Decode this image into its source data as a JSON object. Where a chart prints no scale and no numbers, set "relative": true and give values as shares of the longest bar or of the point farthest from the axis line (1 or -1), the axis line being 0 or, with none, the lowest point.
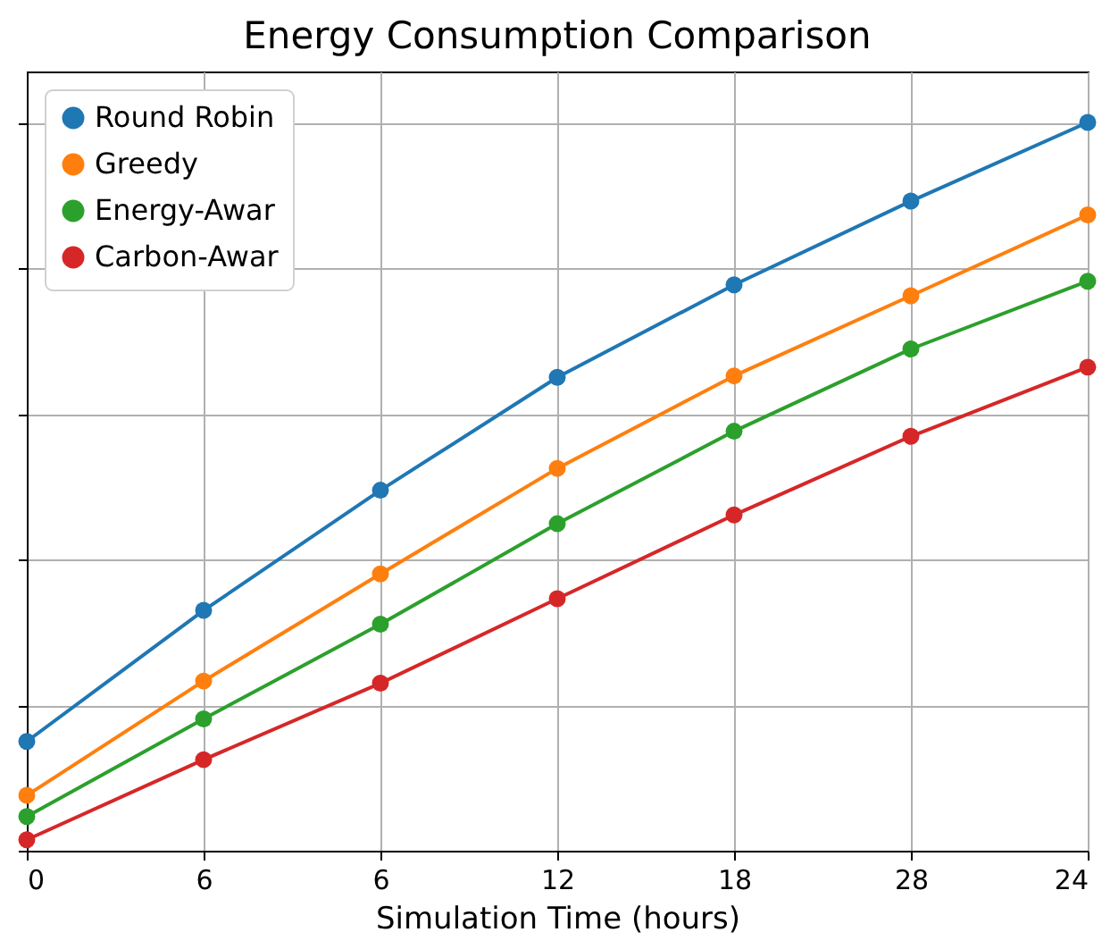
{
  "chart_data": {
    "type": "line",
    "title": "Energy Consumption Comparison",
    "xlabel": "Simulation Time (hours)",
    "categories": [
      "0",
      "6",
      "6",
      "12",
      "18",
      "28",
      "24"
    ],
    "relative": true,
    "grid": true,
    "legend": "top left",
    "marker": "circle",
    "line_style": "solid",
    "series": [
      {
        "name": "Round Robin",
        "color": "#1f77b4",
        "values": [
          0.15,
          0.33,
          0.495,
          0.65,
          0.777,
          0.892,
          1
        ]
      },
      {
        "name": "Greedy",
        "color": "#ff7f0e",
        "values": [
          0.076,
          0.233,
          0.38,
          0.525,
          0.652,
          0.762,
          0.873
        ]
      },
      {
        "name": "Energy-Awar",
        "color": "#2ca02c",
        "values": [
          0.047,
          0.181,
          0.311,
          0.449,
          0.576,
          0.689,
          0.782
        ]
      },
      {
        "name": "Carbon-Awar",
        "color": "#d62728",
        "values": [
          0.015,
          0.125,
          0.23,
          0.346,
          0.461,
          0.569,
          0.664
        ]
      }
    ]
  }
}
